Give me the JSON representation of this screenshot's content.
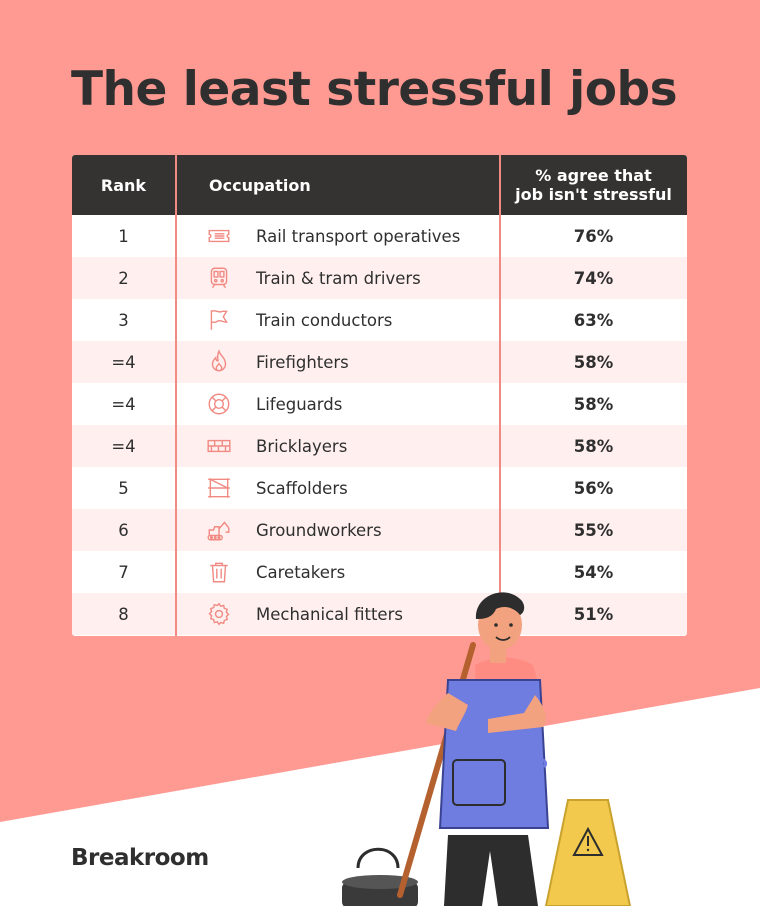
{
  "title": "The least stressful jobs",
  "headers": {
    "rank": "Rank",
    "occupation": "Occupation",
    "percent_line1": "% agree that",
    "percent_line2": "job isn't stressful"
  },
  "rows": [
    {
      "rank": "1",
      "occupation": "Rail transport operatives",
      "percent": "76%",
      "icon": "ticket-icon"
    },
    {
      "rank": "2",
      "occupation": "Train & tram drivers",
      "percent": "74%",
      "icon": "train-icon"
    },
    {
      "rank": "3",
      "occupation": "Train conductors",
      "percent": "63%",
      "icon": "flag-icon"
    },
    {
      "rank": "=4",
      "occupation": "Firefighters",
      "percent": "58%",
      "icon": "flame-icon"
    },
    {
      "rank": "=4",
      "occupation": "Lifeguards",
      "percent": "58%",
      "icon": "lifebuoy-icon"
    },
    {
      "rank": "=4",
      "occupation": "Bricklayers",
      "percent": "58%",
      "icon": "bricks-icon"
    },
    {
      "rank": "5",
      "occupation": "Scaffolders",
      "percent": "56%",
      "icon": "scaffold-icon"
    },
    {
      "rank": "6",
      "occupation": "Groundworkers",
      "percent": "55%",
      "icon": "excavator-icon"
    },
    {
      "rank": "7",
      "occupation": "Caretakers",
      "percent": "54%",
      "icon": "trash-bin-icon"
    },
    {
      "rank": "8",
      "occupation": "Mechanical fitters",
      "percent": "51%",
      "icon": "gear-icon"
    }
  ],
  "brand": "Breakroom",
  "colors": {
    "background": "#ff9a92",
    "header": "#353332",
    "row_alt": "#fff0ef",
    "icon": "#f08a83",
    "text": "#2f2f2f"
  }
}
